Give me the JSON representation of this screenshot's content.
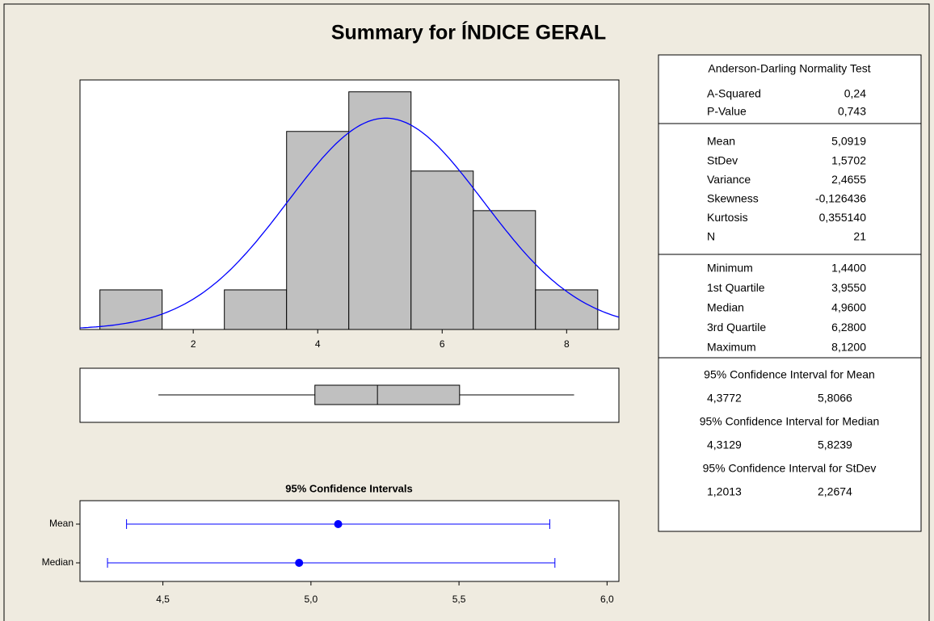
{
  "title": "Summary for ÍNDICE GERAL",
  "chart_data": [
    {
      "type": "histogram",
      "bins": [
        0.5,
        1.5,
        2.5,
        3.5,
        4.5,
        5.5,
        6.5,
        7.5,
        8.5
      ],
      "values": [
        1,
        0,
        1,
        5,
        6,
        4,
        3,
        1
      ],
      "xlim": [
        0.18,
        8.84
      ],
      "ylim": [
        0,
        6.3
      ],
      "xticks": [
        2,
        4,
        6,
        8
      ],
      "color": "#c0c0c0",
      "curve_color": "#0000ff"
    },
    {
      "type": "box",
      "color": "#c0c0c0"
    },
    {
      "type": "interval",
      "title": "95% Confidence Intervals",
      "categories": [
        "Mean",
        "Median"
      ],
      "xlim": [
        4.22,
        6.04
      ],
      "xticks": [
        {
          "value": 4.5,
          "label": "4,5"
        },
        {
          "value": 5.0,
          "label": "5,0"
        },
        {
          "value": 5.5,
          "label": "5,5"
        },
        {
          "value": 6.0,
          "label": "6,0"
        }
      ],
      "color": "#0000ff"
    }
  ],
  "stats": {
    "test": {
      "title": "Anderson-Darling Normality Test",
      "rows": [
        {
          "name": "A-Squared",
          "value": 0.24,
          "label": "0,24"
        },
        {
          "name": "P-Value",
          "value": 0.743,
          "label": "0,743"
        }
      ]
    },
    "moments": {
      "rows": [
        {
          "name": "Mean",
          "value": 5.0919,
          "label": "5,0919"
        },
        {
          "name": "StDev",
          "value": 1.5702,
          "label": "1,5702"
        },
        {
          "name": "Variance",
          "value": 2.4655,
          "label": "2,4655"
        },
        {
          "name": "Skewness",
          "value": -0.126436,
          "label": "-0,126436"
        },
        {
          "name": "Kurtosis",
          "value": 0.35514,
          "label": "0,355140"
        },
        {
          "name": "N",
          "value": 21
        }
      ]
    },
    "quantiles": {
      "rows": [
        {
          "name": "Minimum",
          "value": 1.44,
          "label": "1,4400"
        },
        {
          "name": "1st Quartile",
          "value": 3.955,
          "label": "3,9550"
        },
        {
          "name": "Median",
          "value": 4.96,
          "label": "4,9600"
        },
        {
          "name": "3rd Quartile",
          "value": 6.28,
          "label": "6,2800"
        },
        {
          "name": "Maximum",
          "value": 8.12,
          "label": "8,1200"
        }
      ]
    },
    "intervals": [
      {
        "title": "95% Confidence Interval for Mean",
        "lower": {
          "value": 4.3772,
          "label": "4,3772"
        },
        "upper": {
          "value": 5.8066,
          "label": "5,8066"
        }
      },
      {
        "title": "95% Confidence Interval for Median",
        "lower": {
          "value": 4.3129,
          "label": "4,3129"
        },
        "upper": {
          "value": 5.8239,
          "label": "5,8239"
        }
      },
      {
        "title": "95% Confidence Interval for StDev",
        "lower": {
          "value": 1.2013,
          "label": "1,2013"
        },
        "upper": {
          "value": 2.2674,
          "label": "2,2674"
        }
      }
    ]
  }
}
